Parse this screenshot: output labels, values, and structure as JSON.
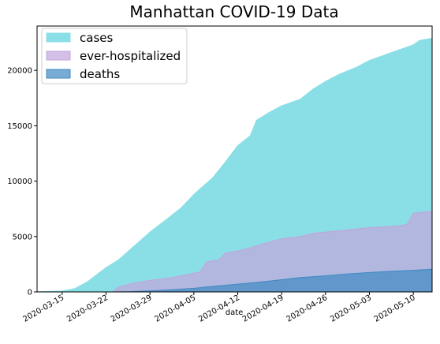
{
  "chart_data": {
    "type": "area",
    "title": "Manhattan COVID-19 Data",
    "xlabel": "date",
    "ylabel": "",
    "xlim": [
      "2020-03-11",
      "2020-05-13"
    ],
    "ylim": [
      0,
      24000
    ],
    "x_ticks": [
      "2020-03-15",
      "2020-03-22",
      "2020-03-29",
      "2020-04-05",
      "2020-04-12",
      "2020-04-19",
      "2020-04-26",
      "2020-05-03",
      "2020-05-10"
    ],
    "y_ticks": [
      0,
      5000,
      10000,
      15000,
      20000
    ],
    "legend_position": "top-left",
    "grid": false,
    "series": [
      {
        "name": "cases",
        "color": "#8adfe6",
        "points": [
          [
            "2020-03-11",
            20
          ],
          [
            "2020-03-15",
            80
          ],
          [
            "2020-03-17",
            300
          ],
          [
            "2020-03-19",
            900
          ],
          [
            "2020-03-22",
            2200
          ],
          [
            "2020-03-24",
            2900
          ],
          [
            "2020-03-26",
            3900
          ],
          [
            "2020-03-29",
            5400
          ],
          [
            "2020-04-01",
            6700
          ],
          [
            "2020-04-03",
            7600
          ],
          [
            "2020-04-05",
            8800
          ],
          [
            "2020-04-08",
            10300
          ],
          [
            "2020-04-10",
            11700
          ],
          [
            "2020-04-12",
            13200
          ],
          [
            "2020-04-14",
            14100
          ],
          [
            "2020-04-15",
            15500
          ],
          [
            "2020-04-17",
            16200
          ],
          [
            "2020-04-19",
            16800
          ],
          [
            "2020-04-22",
            17400
          ],
          [
            "2020-04-24",
            18300
          ],
          [
            "2020-04-26",
            19000
          ],
          [
            "2020-04-28",
            19600
          ],
          [
            "2020-05-01",
            20300
          ],
          [
            "2020-05-03",
            20900
          ],
          [
            "2020-05-06",
            21500
          ],
          [
            "2020-05-08",
            21900
          ],
          [
            "2020-05-10",
            22300
          ],
          [
            "2020-05-11",
            22700
          ],
          [
            "2020-05-13",
            22900
          ]
        ]
      },
      {
        "name": "ever-hospitalized",
        "color": "#c2a5dc",
        "points": [
          [
            "2020-03-11",
            0
          ],
          [
            "2020-03-23",
            0
          ],
          [
            "2020-03-24",
            450
          ],
          [
            "2020-03-26",
            750
          ],
          [
            "2020-03-29",
            1050
          ],
          [
            "2020-04-01",
            1250
          ],
          [
            "2020-04-03",
            1450
          ],
          [
            "2020-04-05",
            1700
          ],
          [
            "2020-04-06",
            1800
          ],
          [
            "2020-04-07",
            2700
          ],
          [
            "2020-04-09",
            2900
          ],
          [
            "2020-04-10",
            3500
          ],
          [
            "2020-04-12",
            3700
          ],
          [
            "2020-04-14",
            4000
          ],
          [
            "2020-04-17",
            4500
          ],
          [
            "2020-04-19",
            4800
          ],
          [
            "2020-04-22",
            5000
          ],
          [
            "2020-04-24",
            5300
          ],
          [
            "2020-04-26",
            5400
          ],
          [
            "2020-04-28",
            5500
          ],
          [
            "2020-05-01",
            5700
          ],
          [
            "2020-05-03",
            5800
          ],
          [
            "2020-05-06",
            5900
          ],
          [
            "2020-05-08",
            6000
          ],
          [
            "2020-05-09",
            6100
          ],
          [
            "2020-05-10",
            7100
          ],
          [
            "2020-05-13",
            7300
          ]
        ]
      },
      {
        "name": "deaths",
        "color": "#3f89c2",
        "points": [
          [
            "2020-03-11",
            0
          ],
          [
            "2020-03-23",
            0
          ],
          [
            "2020-03-26",
            30
          ],
          [
            "2020-03-29",
            100
          ],
          [
            "2020-04-01",
            180
          ],
          [
            "2020-04-05",
            330
          ],
          [
            "2020-04-08",
            500
          ],
          [
            "2020-04-12",
            700
          ],
          [
            "2020-04-15",
            850
          ],
          [
            "2020-04-19",
            1100
          ],
          [
            "2020-04-22",
            1300
          ],
          [
            "2020-04-26",
            1450
          ],
          [
            "2020-04-29",
            1600
          ],
          [
            "2020-05-03",
            1750
          ],
          [
            "2020-05-06",
            1850
          ],
          [
            "2020-05-10",
            1950
          ],
          [
            "2020-05-13",
            2050
          ]
        ]
      }
    ]
  }
}
